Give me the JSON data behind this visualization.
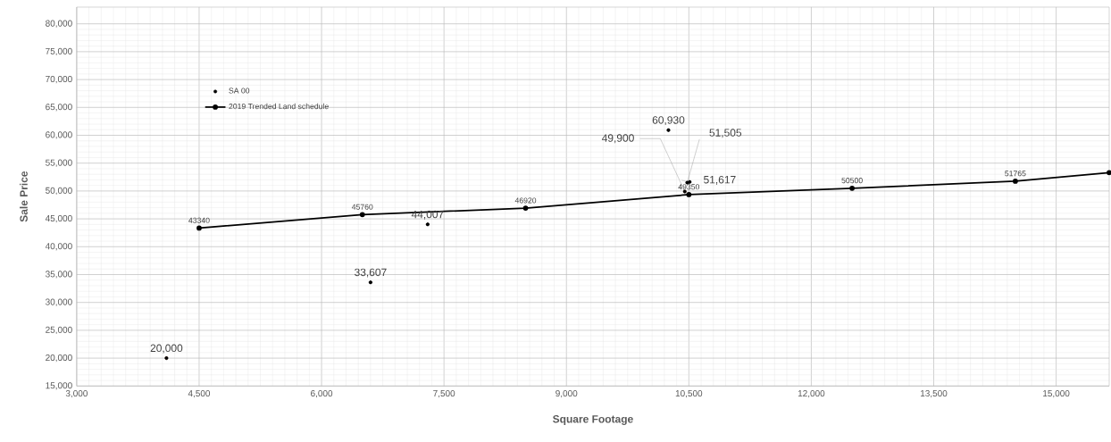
{
  "chart_data": {
    "type": "scatter",
    "xlabel": "Square Footage",
    "ylabel": "Sale Price",
    "xlim": [
      3000,
      15650
    ],
    "ylim": [
      15000,
      83000
    ],
    "xticks": [
      {
        "value": 3000,
        "label": "3,000"
      },
      {
        "value": 4500,
        "label": "4,500"
      },
      {
        "value": 6000,
        "label": "6,000"
      },
      {
        "value": 7500,
        "label": "7,500"
      },
      {
        "value": 9000,
        "label": "9,000"
      },
      {
        "value": 10500,
        "label": "10,500"
      },
      {
        "value": 12000,
        "label": "12,000"
      },
      {
        "value": 13500,
        "label": "13,500"
      },
      {
        "value": 15000,
        "label": "15,000"
      }
    ],
    "yticks": [
      {
        "value": 15000,
        "label": "15,000"
      },
      {
        "value": 20000,
        "label": "20,000"
      },
      {
        "value": 25000,
        "label": "25,000"
      },
      {
        "value": 30000,
        "label": "30,000"
      },
      {
        "value": 35000,
        "label": "35,000"
      },
      {
        "value": 40000,
        "label": "40,000"
      },
      {
        "value": 45000,
        "label": "45,000"
      },
      {
        "value": 50000,
        "label": "50,000"
      },
      {
        "value": 55000,
        "label": "55,000"
      },
      {
        "value": 60000,
        "label": "60,000"
      },
      {
        "value": 65000,
        "label": "65,000"
      },
      {
        "value": 70000,
        "label": "70,000"
      },
      {
        "value": 75000,
        "label": "75,000"
      },
      {
        "value": 80000,
        "label": "80,000"
      }
    ],
    "grid": true,
    "legend": "top left",
    "marker": "circle",
    "series": [
      {
        "name": "SA 00",
        "color": "#000000",
        "x": [
          4100,
          6600,
          7300,
          10250,
          10450,
          10480,
          10510
        ],
        "values": [
          20000,
          33607,
          44007,
          60930,
          49900,
          51505,
          51617
        ],
        "colors": [
          "#8b3a0f",
          "#000000",
          "#000000",
          "#000000",
          "#c0602a",
          "#000000",
          "#000000"
        ],
        "value_labels": [
          "20,000",
          "33,607",
          "44,007",
          "60,930",
          "49,900",
          "51,505",
          "51,617"
        ]
      },
      {
        "name": "2019 Trended Land schedule",
        "type": "line",
        "color": "#000000",
        "line_style": "solid",
        "x": [
          4500,
          6500,
          8500,
          10500,
          12500,
          14500,
          15650
        ],
        "values": [
          43340,
          45760,
          46920,
          49350,
          50500,
          51765,
          53300
        ],
        "value_labels": [
          "43340",
          "45760",
          "46920",
          "49350",
          "50500",
          "51765",
          null
        ]
      }
    ]
  }
}
